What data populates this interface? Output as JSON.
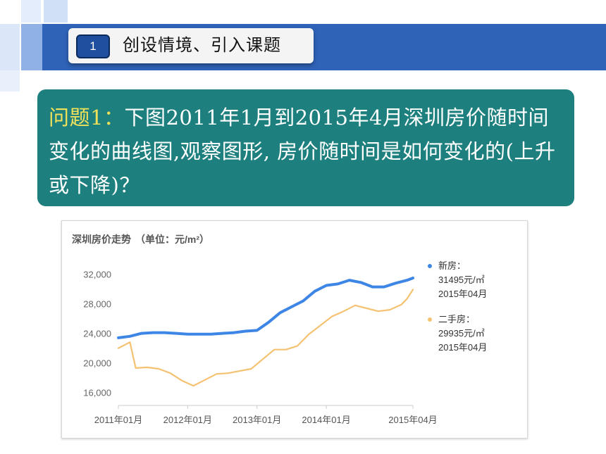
{
  "header": {
    "section_number": "1",
    "section_title": "创设情境、引入课题"
  },
  "question": {
    "label": "问题1：",
    "text": "下图2011年1月到2015年4月深圳房价随时间变化的曲线图,观察图形, 房价随时间是如何变化的(上升或下降)？"
  },
  "colors": {
    "header_blue": "#2f63b8",
    "question_bg": "#1d7f7e",
    "question_label": "#f2e25a",
    "new_house": "#3d86e6",
    "second_hand": "#f5c272"
  },
  "chart_data": {
    "type": "line",
    "title": "深圳房价走势",
    "subtitle": "（单位：元/m²）",
    "xlabel": "",
    "ylabel": "",
    "ylim": [
      15000,
      33500
    ],
    "yticks": [
      "32,000",
      "28,000",
      "24,000",
      "20,000",
      "16,000"
    ],
    "ytick_values": [
      32000,
      28000,
      24000,
      20000,
      16000
    ],
    "xlim": [
      "2011-01",
      "2015-04"
    ],
    "xticks": [
      "2011年01月",
      "2012年01月",
      "2013年01月",
      "2014年01月",
      "2015年04月"
    ],
    "xtick_dates": [
      "2011-01",
      "2012-01",
      "2013-01",
      "2014-01",
      "2015-04"
    ],
    "grid": false,
    "legend_position": "right",
    "series": [
      {
        "name": "新房",
        "legend_value": "31495元/㎡",
        "legend_date": "2015年04月",
        "color": "#3d86e6",
        "points": [
          [
            "2011-01",
            23400
          ],
          [
            "2011-03",
            23600
          ],
          [
            "2011-05",
            24000
          ],
          [
            "2011-07",
            24100
          ],
          [
            "2011-09",
            24100
          ],
          [
            "2011-11",
            24000
          ],
          [
            "2012-01",
            23900
          ],
          [
            "2012-03",
            23900
          ],
          [
            "2012-05",
            23900
          ],
          [
            "2012-07",
            24000
          ],
          [
            "2012-09",
            24100
          ],
          [
            "2012-11",
            24300
          ],
          [
            "2013-01",
            24400
          ],
          [
            "2013-03",
            25500
          ],
          [
            "2013-05",
            26800
          ],
          [
            "2013-07",
            27600
          ],
          [
            "2013-09",
            28400
          ],
          [
            "2013-11",
            29700
          ],
          [
            "2014-01",
            30500
          ],
          [
            "2014-03",
            30700
          ],
          [
            "2014-05",
            31200
          ],
          [
            "2014-07",
            30900
          ],
          [
            "2014-09",
            30300
          ],
          [
            "2014-11",
            30300
          ],
          [
            "2015-01",
            30800
          ],
          [
            "2015-03",
            31200
          ],
          [
            "2015-04",
            31495
          ]
        ]
      },
      {
        "name": "二手房",
        "legend_value": "29935元/㎡",
        "legend_date": "2015年04月",
        "color": "#f5c272",
        "points": [
          [
            "2011-01",
            22000
          ],
          [
            "2011-03",
            22800
          ],
          [
            "2011-04",
            19300
          ],
          [
            "2011-06",
            19400
          ],
          [
            "2011-08",
            19200
          ],
          [
            "2011-10",
            18600
          ],
          [
            "2011-12",
            17600
          ],
          [
            "2012-02",
            16900
          ],
          [
            "2012-04",
            17700
          ],
          [
            "2012-06",
            18500
          ],
          [
            "2012-08",
            18600
          ],
          [
            "2012-10",
            18900
          ],
          [
            "2012-12",
            19200
          ],
          [
            "2013-02",
            20500
          ],
          [
            "2013-04",
            21800
          ],
          [
            "2013-06",
            21800
          ],
          [
            "2013-08",
            22300
          ],
          [
            "2013-10",
            23900
          ],
          [
            "2013-12",
            25100
          ],
          [
            "2014-02",
            26300
          ],
          [
            "2014-04",
            27000
          ],
          [
            "2014-06",
            27800
          ],
          [
            "2014-08",
            27400
          ],
          [
            "2014-10",
            27000
          ],
          [
            "2014-12",
            27200
          ],
          [
            "2015-02",
            27900
          ],
          [
            "2015-03",
            28700
          ],
          [
            "2015-04",
            29935
          ]
        ]
      }
    ]
  }
}
